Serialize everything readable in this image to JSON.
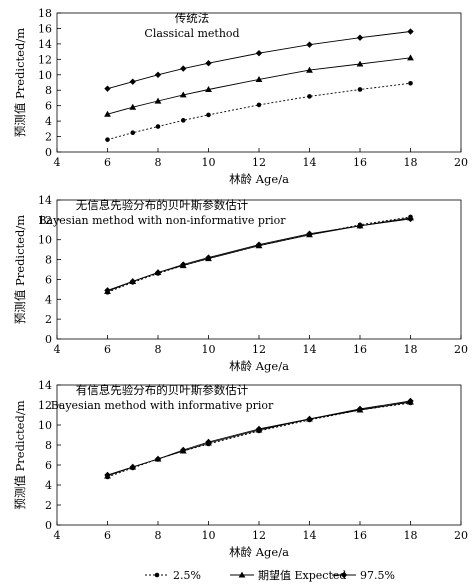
{
  "legend": {
    "items": [
      {
        "label": "2.5%",
        "style": "dotted",
        "marker": "circle"
      },
      {
        "label": "期望值 Expected",
        "style": "solid",
        "marker": "triangle"
      },
      {
        "label": "97.5%",
        "style": "solid",
        "marker": "diamond"
      }
    ],
    "placement": "bottom"
  },
  "chart_data": [
    {
      "type": "line",
      "title_cn": "传统法",
      "title_en": "Classical method",
      "xlabel": "林龄 Age/a",
      "ylabel": "预测值 Predicted/m",
      "xlim": [
        4,
        20
      ],
      "ylim": [
        0,
        18
      ],
      "xticks": [
        4,
        6,
        8,
        10,
        12,
        14,
        16,
        18,
        20
      ],
      "yticks": [
        0,
        2,
        4,
        6,
        8,
        10,
        12,
        14,
        16,
        18
      ],
      "grid": false,
      "x": [
        6,
        7,
        8,
        9,
        10,
        12,
        14,
        16,
        18
      ],
      "series": [
        {
          "name": "2.5%",
          "values": [
            1.6,
            2.5,
            3.3,
            4.1,
            4.8,
            6.1,
            7.2,
            8.1,
            8.9
          ]
        },
        {
          "name": "期望值 Expected",
          "values": [
            4.9,
            5.8,
            6.6,
            7.4,
            8.1,
            9.4,
            10.6,
            11.4,
            12.2
          ]
        },
        {
          "name": "97.5%",
          "values": [
            8.2,
            9.1,
            10.0,
            10.8,
            11.5,
            12.8,
            13.9,
            14.8,
            15.6
          ]
        }
      ]
    },
    {
      "type": "line",
      "title_cn": "无信息先验分布的贝叶斯参数估计",
      "title_en": "Bayesian method with non-informative prior",
      "xlabel": "林龄 Age/a",
      "ylabel": "预测值 Predicted/m",
      "xlim": [
        4,
        20
      ],
      "ylim": [
        0,
        14
      ],
      "xticks": [
        4,
        6,
        8,
        10,
        12,
        14,
        16,
        18,
        20
      ],
      "yticks": [
        0,
        2,
        4,
        6,
        8,
        10,
        12,
        14
      ],
      "grid": false,
      "x": [
        6,
        7,
        8,
        9,
        10,
        12,
        14,
        16,
        18
      ],
      "series": [
        {
          "name": "2.5%",
          "values": [
            4.7,
            5.7,
            6.6,
            7.4,
            8.1,
            9.4,
            10.5,
            11.5,
            12.3
          ]
        },
        {
          "name": "期望值 Expected",
          "values": [
            4.8,
            5.8,
            6.7,
            7.4,
            8.1,
            9.4,
            10.5,
            11.4,
            12.2
          ]
        },
        {
          "name": "97.5%",
          "values": [
            4.9,
            5.8,
            6.7,
            7.5,
            8.2,
            9.5,
            10.6,
            11.4,
            12.1
          ]
        }
      ]
    },
    {
      "type": "line",
      "title_cn": "有信息先验分布的贝叶斯参数估计",
      "title_en": "Bayesian method with informative prior",
      "xlabel": "林龄 Age/a",
      "ylabel": "预测值 Predicted/m",
      "xlim": [
        4,
        20
      ],
      "ylim": [
        0,
        14
      ],
      "xticks": [
        4,
        6,
        8,
        10,
        12,
        14,
        16,
        18,
        20
      ],
      "yticks": [
        0,
        2,
        4,
        6,
        8,
        10,
        12,
        14
      ],
      "grid": false,
      "x": [
        6,
        7,
        8,
        9,
        10,
        12,
        14,
        16,
        18
      ],
      "series": [
        {
          "name": "2.5%",
          "values": [
            4.8,
            5.7,
            6.6,
            7.4,
            8.1,
            9.4,
            10.5,
            11.5,
            12.2
          ]
        },
        {
          "name": "期望值 Expected",
          "values": [
            4.9,
            5.8,
            6.6,
            7.4,
            8.2,
            9.5,
            10.6,
            11.5,
            12.3
          ]
        },
        {
          "name": "97.5%",
          "values": [
            5.0,
            5.8,
            6.6,
            7.5,
            8.3,
            9.6,
            10.6,
            11.6,
            12.4
          ]
        }
      ]
    }
  ]
}
